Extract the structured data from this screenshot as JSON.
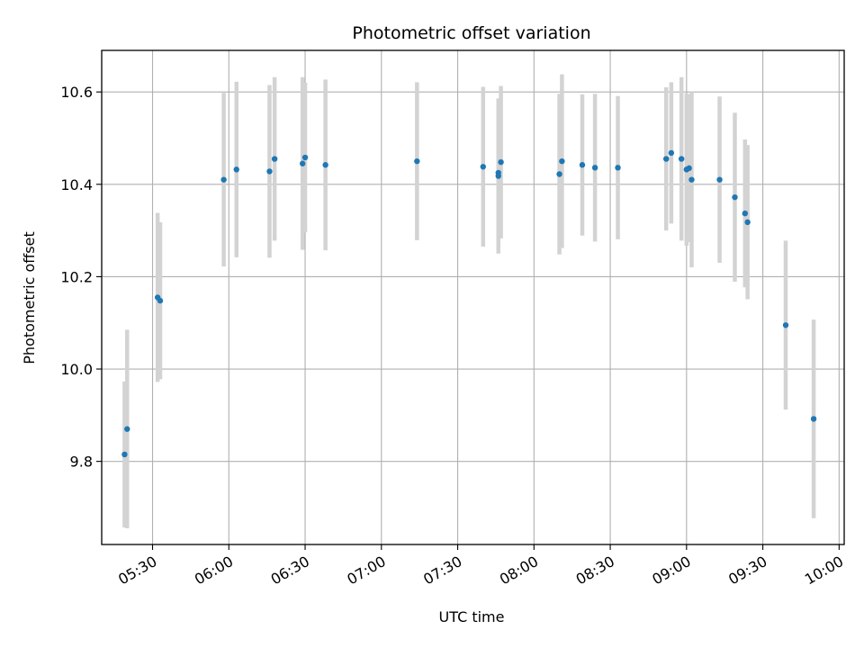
{
  "chart_data": {
    "type": "scatter",
    "title": "Photometric offset variation",
    "xlabel": "UTC time",
    "ylabel": "Photometric offset",
    "grid": true,
    "xlim": [
      "05:10",
      "10:02"
    ],
    "ylim": [
      9.62,
      10.69
    ],
    "x_ticks": [
      "05:30",
      "06:00",
      "06:30",
      "07:00",
      "07:30",
      "08:00",
      "08:30",
      "09:00",
      "09:30",
      "10:00"
    ],
    "y_ticks": [
      9.8,
      10.0,
      10.2,
      10.4,
      10.6
    ],
    "colors": {
      "point": "#1f77b4",
      "errorbar": "#d3d3d3",
      "grid": "#b0b0b0"
    },
    "points": [
      {
        "x": "05:19",
        "y": 9.815,
        "yerr": 0.158
      },
      {
        "x": "05:20",
        "y": 9.87,
        "yerr": 0.215
      },
      {
        "x": "05:32",
        "y": 10.155,
        "yerr": 0.183
      },
      {
        "x": "05:33",
        "y": 10.148,
        "yerr": 0.17
      },
      {
        "x": "05:58",
        "y": 10.41,
        "yerr": 0.188
      },
      {
        "x": "06:03",
        "y": 10.432,
        "yerr": 0.19
      },
      {
        "x": "06:16",
        "y": 10.428,
        "yerr": 0.187
      },
      {
        "x": "06:18",
        "y": 10.455,
        "yerr": 0.177
      },
      {
        "x": "06:29",
        "y": 10.445,
        "yerr": 0.187
      },
      {
        "x": "06:30",
        "y": 10.458,
        "yerr": 0.162
      },
      {
        "x": "06:38",
        "y": 10.442,
        "yerr": 0.185
      },
      {
        "x": "07:14",
        "y": 10.45,
        "yerr": 0.171
      },
      {
        "x": "07:40",
        "y": 10.438,
        "yerr": 0.173
      },
      {
        "x": "07:46",
        "y": 10.425,
        "yerr": 0.16
      },
      {
        "x": "07:46",
        "y": 10.418,
        "yerr": 0.168
      },
      {
        "x": "07:47",
        "y": 10.448,
        "yerr": 0.165
      },
      {
        "x": "08:10",
        "y": 10.422,
        "yerr": 0.174
      },
      {
        "x": "08:11",
        "y": 10.45,
        "yerr": 0.188
      },
      {
        "x": "08:19",
        "y": 10.442,
        "yerr": 0.153
      },
      {
        "x": "08:24",
        "y": 10.436,
        "yerr": 0.16
      },
      {
        "x": "08:33",
        "y": 10.436,
        "yerr": 0.155
      },
      {
        "x": "08:52",
        "y": 10.455,
        "yerr": 0.155
      },
      {
        "x": "08:54",
        "y": 10.468,
        "yerr": 0.153
      },
      {
        "x": "08:58",
        "y": 10.455,
        "yerr": 0.177
      },
      {
        "x": "09:00",
        "y": 10.432,
        "yerr": 0.165
      },
      {
        "x": "09:01",
        "y": 10.435,
        "yerr": 0.16
      },
      {
        "x": "09:02",
        "y": 10.41,
        "yerr": 0.19
      },
      {
        "x": "09:13",
        "y": 10.41,
        "yerr": 0.18
      },
      {
        "x": "09:19",
        "y": 10.372,
        "yerr": 0.183
      },
      {
        "x": "09:23",
        "y": 10.337,
        "yerr": 0.16
      },
      {
        "x": "09:24",
        "y": 10.318,
        "yerr": 0.167
      },
      {
        "x": "09:39",
        "y": 10.095,
        "yerr": 0.183
      },
      {
        "x": "09:50",
        "y": 9.892,
        "yerr": 0.215
      }
    ]
  }
}
